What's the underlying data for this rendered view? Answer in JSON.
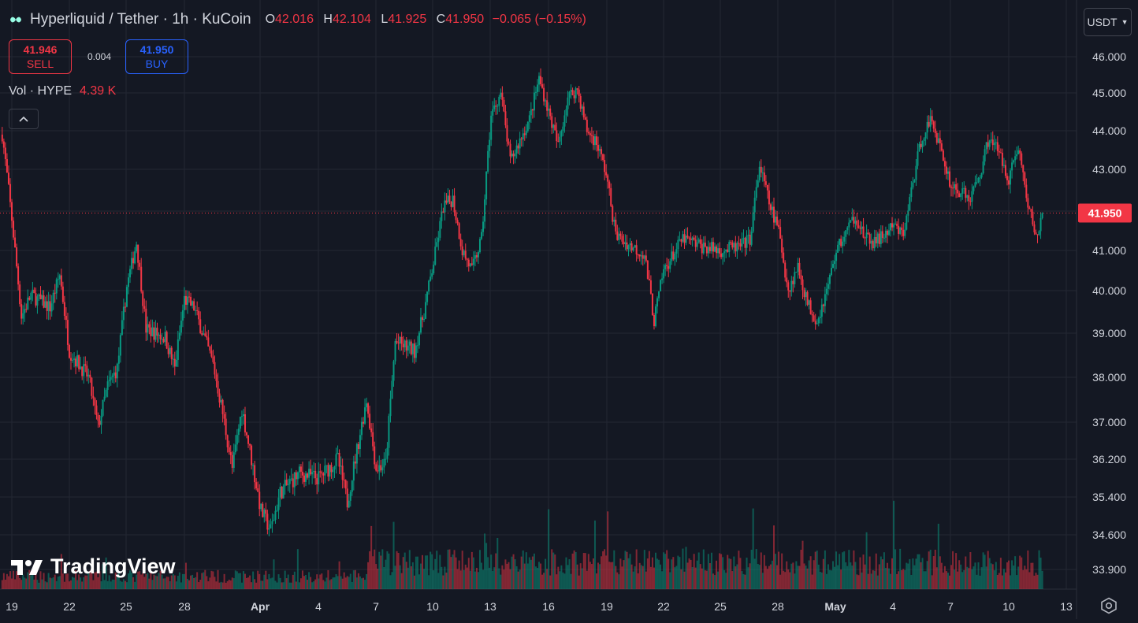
{
  "symbol": {
    "title": "Hyperliquid / Tether · 1h · KuCoin",
    "open_label": "O",
    "open": "42.016",
    "high_label": "H",
    "high": "42.104",
    "low_label": "L",
    "low": "41.925",
    "close_label": "C",
    "close": "41.950",
    "change": "−0.065 (−0.15%)"
  },
  "trade": {
    "sell_price": "41.946",
    "sell_label": "SELL",
    "spread": "0.004",
    "buy_price": "41.950",
    "buy_label": "BUY"
  },
  "volume": {
    "label": "Vol · HYPE",
    "value": "4.39 K"
  },
  "currency": {
    "label": "USDT"
  },
  "watermark": "TradingView",
  "colors": {
    "up": "#089981",
    "down": "#f23645",
    "bg": "#141823",
    "grid": "#232733",
    "text": "#d1d4dc"
  },
  "icons": {
    "collapse": "chevron-up-icon",
    "currency": "chevron-down-icon",
    "settings": "gear-icon",
    "logo": "hyperliquid-logo"
  },
  "chart_data": {
    "type": "candlestick",
    "interval": "1h",
    "last_price": 41.95,
    "price_label": "41.950",
    "y_axis_ticks": [
      "46.000",
      "45.000",
      "44.000",
      "43.000",
      "42.000",
      "41.000",
      "40.000",
      "39.000",
      "38.000",
      "37.000",
      "36.200",
      "35.400",
      "34.600",
      "33.900"
    ],
    "x_axis_ticks": [
      "19",
      "22",
      "25",
      "28",
      "Apr",
      "4",
      "7",
      "10",
      "13",
      "16",
      "19",
      "22",
      "25",
      "28",
      "May",
      "4",
      "7",
      "10",
      "13"
    ],
    "price_path": [
      {
        "date": "Mar 18 12:00",
        "price": 43.9
      },
      {
        "date": "Mar 19 00:00",
        "price": 41.8
      },
      {
        "date": "Mar 19 12:00",
        "price": 39.4
      },
      {
        "date": "Mar 20 00:00",
        "price": 39.9
      },
      {
        "date": "Mar 21 00:00",
        "price": 39.6
      },
      {
        "date": "Mar 21 12:00",
        "price": 40.4
      },
      {
        "date": "Mar 22 00:00",
        "price": 38.6
      },
      {
        "date": "Mar 23 00:00",
        "price": 38.0
      },
      {
        "date": "Mar 23 12:00",
        "price": 36.9
      },
      {
        "date": "Mar 24 00:00",
        "price": 37.8
      },
      {
        "date": "Mar 24 12:00",
        "price": 38.2
      },
      {
        "date": "Mar 25 00:00",
        "price": 40.1
      },
      {
        "date": "Mar 25 12:00",
        "price": 41.2
      },
      {
        "date": "Mar 26 00:00",
        "price": 39.1
      },
      {
        "date": "Mar 27 00:00",
        "price": 38.9
      },
      {
        "date": "Mar 27 12:00",
        "price": 38.2
      },
      {
        "date": "Mar 28 00:00",
        "price": 39.8
      },
      {
        "date": "Mar 28 12:00",
        "price": 39.6
      },
      {
        "date": "Mar 29 12:00",
        "price": 38.3
      },
      {
        "date": "Mar 30 00:00",
        "price": 37.2
      },
      {
        "date": "Mar 30 12:00",
        "price": 36.0
      },
      {
        "date": "Mar 31 00:00",
        "price": 37.3
      },
      {
        "date": "Apr 1 00:00",
        "price": 35.1
      },
      {
        "date": "Apr 1 12:00",
        "price": 34.7
      },
      {
        "date": "Apr 2 00:00",
        "price": 35.5
      },
      {
        "date": "Apr 3 00:00",
        "price": 35.9
      },
      {
        "date": "Apr 4 00:00",
        "price": 35.8
      },
      {
        "date": "Apr 5 00:00",
        "price": 36.2
      },
      {
        "date": "Apr 5 12:00",
        "price": 35.3
      },
      {
        "date": "Apr 6 12:00",
        "price": 37.5
      },
      {
        "date": "Apr 7 00:00",
        "price": 36.0
      },
      {
        "date": "Apr 7 12:00",
        "price": 36.1
      },
      {
        "date": "Apr 8 00:00",
        "price": 38.8
      },
      {
        "date": "Apr 9 00:00",
        "price": 38.6
      },
      {
        "date": "Apr 9 12:00",
        "price": 39.5
      },
      {
        "date": "Apr 10 00:00",
        "price": 40.7
      },
      {
        "date": "Apr 10 12:00",
        "price": 42.1
      },
      {
        "date": "Apr 11 00:00",
        "price": 42.3
      },
      {
        "date": "Apr 11 12:00",
        "price": 41.0
      },
      {
        "date": "Apr 12 00:00",
        "price": 40.5
      },
      {
        "date": "Apr 12 12:00",
        "price": 41.3
      },
      {
        "date": "Apr 13 00:00",
        "price": 44.4
      },
      {
        "date": "Apr 13 12:00",
        "price": 45.0
      },
      {
        "date": "Apr 14 00:00",
        "price": 43.2
      },
      {
        "date": "Apr 15 00:00",
        "price": 44.3
      },
      {
        "date": "Apr 15 12:00",
        "price": 45.4
      },
      {
        "date": "Apr 16 00:00",
        "price": 44.5
      },
      {
        "date": "Apr 16 12:00",
        "price": 43.6
      },
      {
        "date": "Apr 17 00:00",
        "price": 44.9
      },
      {
        "date": "Apr 17 12:00",
        "price": 45.1
      },
      {
        "date": "Apr 18 00:00",
        "price": 44.0
      },
      {
        "date": "Apr 18 12:00",
        "price": 43.7
      },
      {
        "date": "Apr 19 00:00",
        "price": 42.9
      },
      {
        "date": "Apr 19 12:00",
        "price": 41.4
      },
      {
        "date": "Apr 20 00:00",
        "price": 41.2
      },
      {
        "date": "Apr 21 00:00",
        "price": 40.9
      },
      {
        "date": "Apr 21 12:00",
        "price": 39.3
      },
      {
        "date": "Apr 22 00:00",
        "price": 40.5
      },
      {
        "date": "Apr 23 00:00",
        "price": 41.3
      },
      {
        "date": "Apr 24 00:00",
        "price": 41.1
      },
      {
        "date": "Apr 25 00:00",
        "price": 41.0
      },
      {
        "date": "Apr 26 00:00",
        "price": 41.1
      },
      {
        "date": "Apr 26 12:00",
        "price": 41.3
      },
      {
        "date": "Apr 27 00:00",
        "price": 43.1
      },
      {
        "date": "Apr 27 12:00",
        "price": 42.2
      },
      {
        "date": "Apr 28 00:00",
        "price": 41.5
      },
      {
        "date": "Apr 28 12:00",
        "price": 40.0
      },
      {
        "date": "Apr 29 00:00",
        "price": 40.6
      },
      {
        "date": "Apr 29 12:00",
        "price": 39.7
      },
      {
        "date": "Apr 30 00:00",
        "price": 39.3
      },
      {
        "date": "Apr 30 12:00",
        "price": 40.0
      },
      {
        "date": "May 1 00:00",
        "price": 41.0
      },
      {
        "date": "May 2 00:00",
        "price": 41.9
      },
      {
        "date": "May 2 12:00",
        "price": 41.3
      },
      {
        "date": "May 3 00:00",
        "price": 41.2
      },
      {
        "date": "May 4 00:00",
        "price": 41.6
      },
      {
        "date": "May 4 12:00",
        "price": 41.4
      },
      {
        "date": "May 5 00:00",
        "price": 42.7
      },
      {
        "date": "May 5 12:00",
        "price": 43.9
      },
      {
        "date": "May 6 00:00",
        "price": 44.3
      },
      {
        "date": "May 6 12:00",
        "price": 43.4
      },
      {
        "date": "May 7 00:00",
        "price": 42.6
      },
      {
        "date": "May 8 00:00",
        "price": 42.3
      },
      {
        "date": "May 8 12:00",
        "price": 42.9
      },
      {
        "date": "May 9 00:00",
        "price": 43.9
      },
      {
        "date": "May 9 12:00",
        "price": 43.4
      },
      {
        "date": "May 10 00:00",
        "price": 42.8
      },
      {
        "date": "May 10 12:00",
        "price": 43.6
      },
      {
        "date": "May 11 00:00",
        "price": 42.1
      },
      {
        "date": "May 11 12:00",
        "price": 41.3
      },
      {
        "date": "May 11 18:00",
        "price": 41.95
      }
    ],
    "volume_unit": "HYPE",
    "last_volume": "4.39 K"
  }
}
